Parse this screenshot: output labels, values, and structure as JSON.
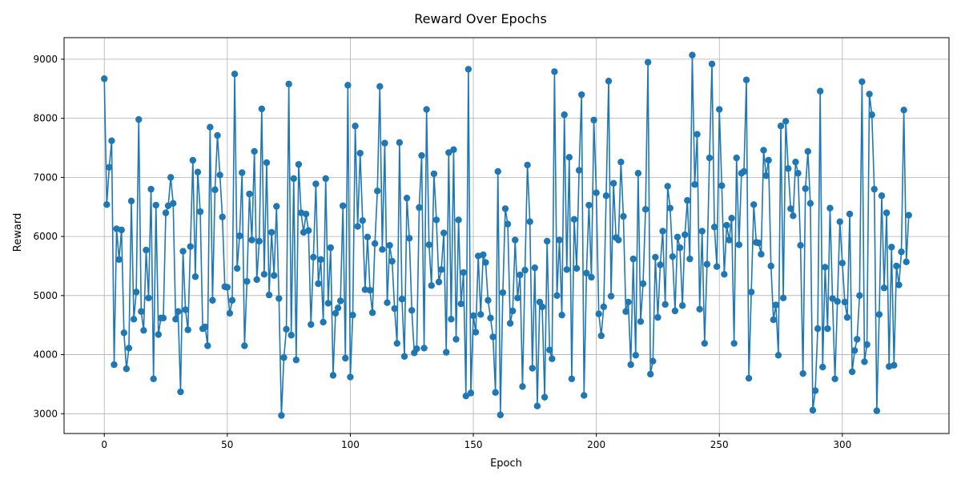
{
  "chart_data": {
    "type": "line",
    "title": "Reward Over Epochs",
    "xlabel": "Epoch",
    "ylabel": "Reward",
    "xlim": [
      -16.35,
      343.35
    ],
    "ylim": [
      2665,
      9365
    ],
    "xticks": [
      0,
      50,
      100,
      150,
      200,
      250,
      300
    ],
    "yticks": [
      3000,
      4000,
      5000,
      6000,
      7000,
      8000,
      9000
    ],
    "xtick_labels": [
      "0",
      "50",
      "100",
      "150",
      "200",
      "250",
      "300"
    ],
    "ytick_labels": [
      "3000",
      "4000",
      "5000",
      "6000",
      "7000",
      "8000",
      "9000"
    ],
    "grid": true,
    "marker": "circle",
    "color": "#1f77b4",
    "series": [
      {
        "name": "Reward",
        "values": [
          8670,
          6540,
          7170,
          7620,
          3830,
          6130,
          5610,
          6110,
          4370,
          3760,
          4110,
          6600,
          4600,
          5060,
          7980,
          4730,
          4410,
          5770,
          4960,
          6800,
          3590,
          6530,
          4340,
          4620,
          4620,
          6400,
          6520,
          7000,
          6560,
          4600,
          4730,
          3370,
          5750,
          4760,
          4420,
          5830,
          7290,
          5320,
          7090,
          6420,
          4440,
          4470,
          4150,
          7850,
          4920,
          6790,
          7710,
          7040,
          6330,
          5150,
          5140,
          4700,
          4920,
          8750,
          5460,
          6010,
          7080,
          4150,
          5240,
          6720,
          5940,
          7440,
          5270,
          5920,
          8160,
          5360,
          7250,
          5010,
          6070,
          5340,
          6510,
          4950,
          2970,
          3950,
          4430,
          8580,
          4330,
          6980,
          3910,
          7220,
          6400,
          6070,
          6380,
          6100,
          4510,
          5650,
          6890,
          5200,
          5610,
          4550,
          6980,
          4870,
          5810,
          3650,
          4700,
          4790,
          4910,
          6520,
          3940,
          8560,
          3620,
          4670,
          7870,
          6170,
          7410,
          6270,
          5100,
          5990,
          5090,
          4710,
          5880,
          6770,
          8540,
          5780,
          7580,
          4880,
          5850,
          5580,
          4780,
          4190,
          7590,
          4940,
          3970,
          6650,
          5970,
          4750,
          4030,
          4100,
          6490,
          7370,
          4110,
          8150,
          5860,
          5170,
          7060,
          6280,
          5230,
          5440,
          6060,
          4040,
          7420,
          4600,
          7470,
          4260,
          6280,
          4860,
          5390,
          3300,
          8830,
          3350,
          4660,
          4380,
          5670,
          4680,
          5690,
          5560,
          4920,
          4620,
          4300,
          3360,
          7100,
          2980,
          5050,
          6470,
          6210,
          4530,
          4740,
          5940,
          4960,
          5350,
          3460,
          5430,
          7210,
          6250,
          3770,
          5470,
          3130,
          4890,
          4810,
          3280,
          5920,
          4080,
          3930,
          8790,
          5000,
          5940,
          4670,
          8060,
          5440,
          7340,
          3590,
          6290,
          5460,
          7120,
          8400,
          3310,
          5380,
          6530,
          5310,
          7970,
          6740,
          4690,
          4320,
          4810,
          6690,
          8630,
          4990,
          6900,
          5980,
          5940,
          7260,
          6340,
          4730,
          4890,
          3830,
          5620,
          3990,
          7070,
          4560,
          5200,
          6460,
          8950,
          3670,
          3890,
          5650,
          4630,
          5520,
          6090,
          4850,
          6850,
          6480,
          5660,
          4740,
          5990,
          5810,
          4830,
          6030,
          6610,
          5620,
          9070,
          6880,
          7730,
          4770,
          6090,
          4190,
          5530,
          7330,
          8920,
          6160,
          5490,
          8150,
          6860,
          5360,
          6190,
          5940,
          6310,
          4190,
          7330,
          5860,
          7070,
          7100,
          8650,
          3600,
          5060,
          6540,
          5900,
          5890,
          5700,
          7460,
          7030,
          7290,
          5500,
          4590,
          4840,
          3990,
          7870,
          4960,
          7950,
          7150,
          6470,
          6350,
          7260,
          7070,
          5850,
          3680,
          6810,
          7440,
          6560,
          3060,
          3390,
          4440,
          8460,
          3790,
          5480,
          4440,
          6480,
          4950,
          3590,
          4900,
          6250,
          5550,
          4890,
          4630,
          6380,
          3710,
          4070,
          4260,
          5000,
          8620,
          3880,
          4170,
          8410,
          8060,
          6800,
          3050,
          4680,
          6690,
          5130,
          6400,
          3800,
          5820,
          3820,
          5500,
          5180,
          5740,
          8140,
          5570,
          6360
        ]
      }
    ]
  }
}
